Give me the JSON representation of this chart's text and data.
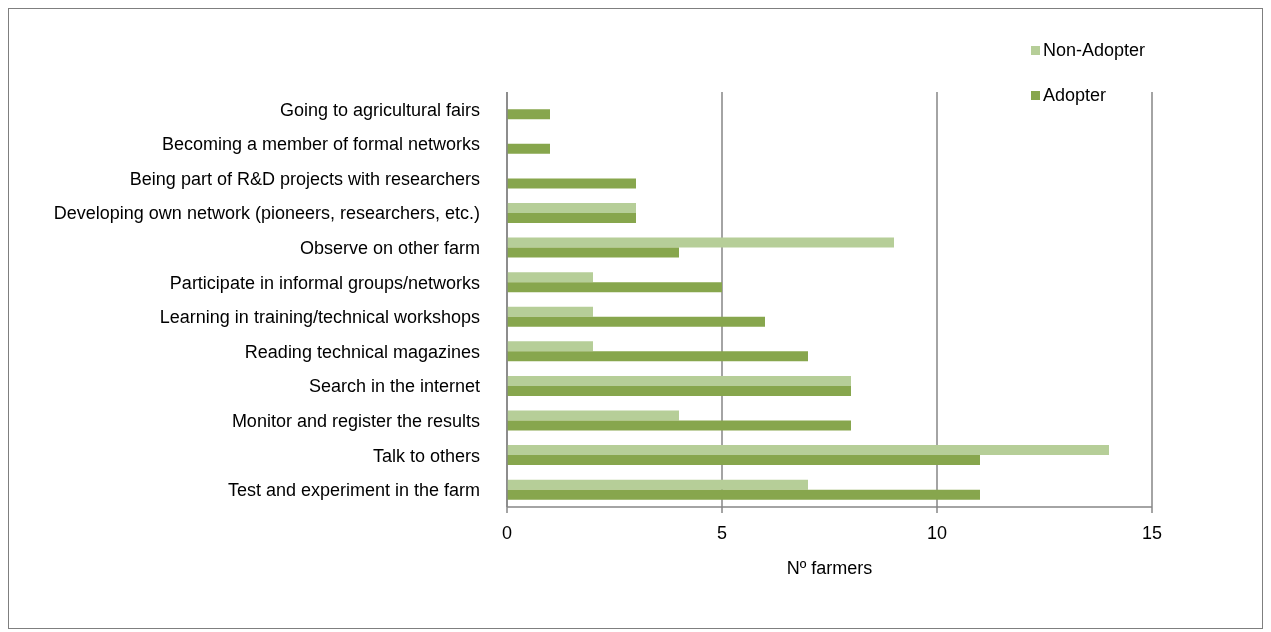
{
  "chart_data": {
    "type": "bar",
    "orientation": "horizontal",
    "categories": [
      "Going to agricultural fairs",
      "Becoming a member of formal networks",
      "Being part of R&D projects with researchers",
      "Developing own network (pioneers, researchers, etc.)",
      "Observe on other farm",
      "Participate in informal groups/networks",
      "Learning in training/technical workshops",
      "Reading technical magazines",
      "Search in the internet",
      "Monitor and register the results",
      "Talk to others",
      "Test and experiment in the farm"
    ],
    "series": [
      {
        "name": "Non-Adopter",
        "color": "#b6ce98",
        "values": [
          0,
          0,
          0,
          3,
          9,
          2,
          2,
          2,
          8,
          4,
          14,
          7
        ]
      },
      {
        "name": "Adopter",
        "color": "#87a64d",
        "values": [
          1,
          1,
          3,
          3,
          4,
          5,
          6,
          7,
          8,
          8,
          11,
          11
        ]
      }
    ],
    "xlim": [
      0,
      15
    ],
    "xticks": [
      0,
      5,
      10,
      15
    ],
    "xlabel": "Nº farmers",
    "grid": "x",
    "legend": "top right"
  }
}
